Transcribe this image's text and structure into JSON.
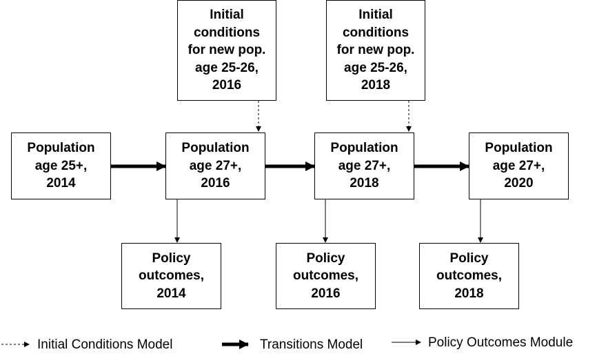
{
  "initial_conditions": [
    {
      "id": "init-2016",
      "label": "Initial\nconditions\nfor new pop.\nage 25-26,\n2016"
    },
    {
      "id": "init-2018",
      "label": "Initial\nconditions\nfor new pop.\nage 25-26,\n2018"
    }
  ],
  "populations": [
    {
      "id": "pop-2014",
      "label": "Population\nage 25+,\n2014"
    },
    {
      "id": "pop-2016",
      "label": "Population\nage 27+,\n2016"
    },
    {
      "id": "pop-2018",
      "label": "Population\nage 27+,\n2018"
    },
    {
      "id": "pop-2020",
      "label": "Population\nage 27+,\n2020"
    }
  ],
  "outcomes": [
    {
      "id": "outcome-2014",
      "label": "Policy\noutcomes,\n2014"
    },
    {
      "id": "outcome-2016",
      "label": "Policy\noutcomes,\n2016"
    },
    {
      "id": "outcome-2018",
      "label": "Policy\noutcomes,\n2018"
    }
  ],
  "legend": {
    "initial_conditions": "Initial Conditions Model",
    "transitions": "Transitions Model",
    "policy_outcomes": "Policy Outcomes Module"
  },
  "colors": {
    "line": "#000000",
    "box_fill": "#ffffff"
  }
}
